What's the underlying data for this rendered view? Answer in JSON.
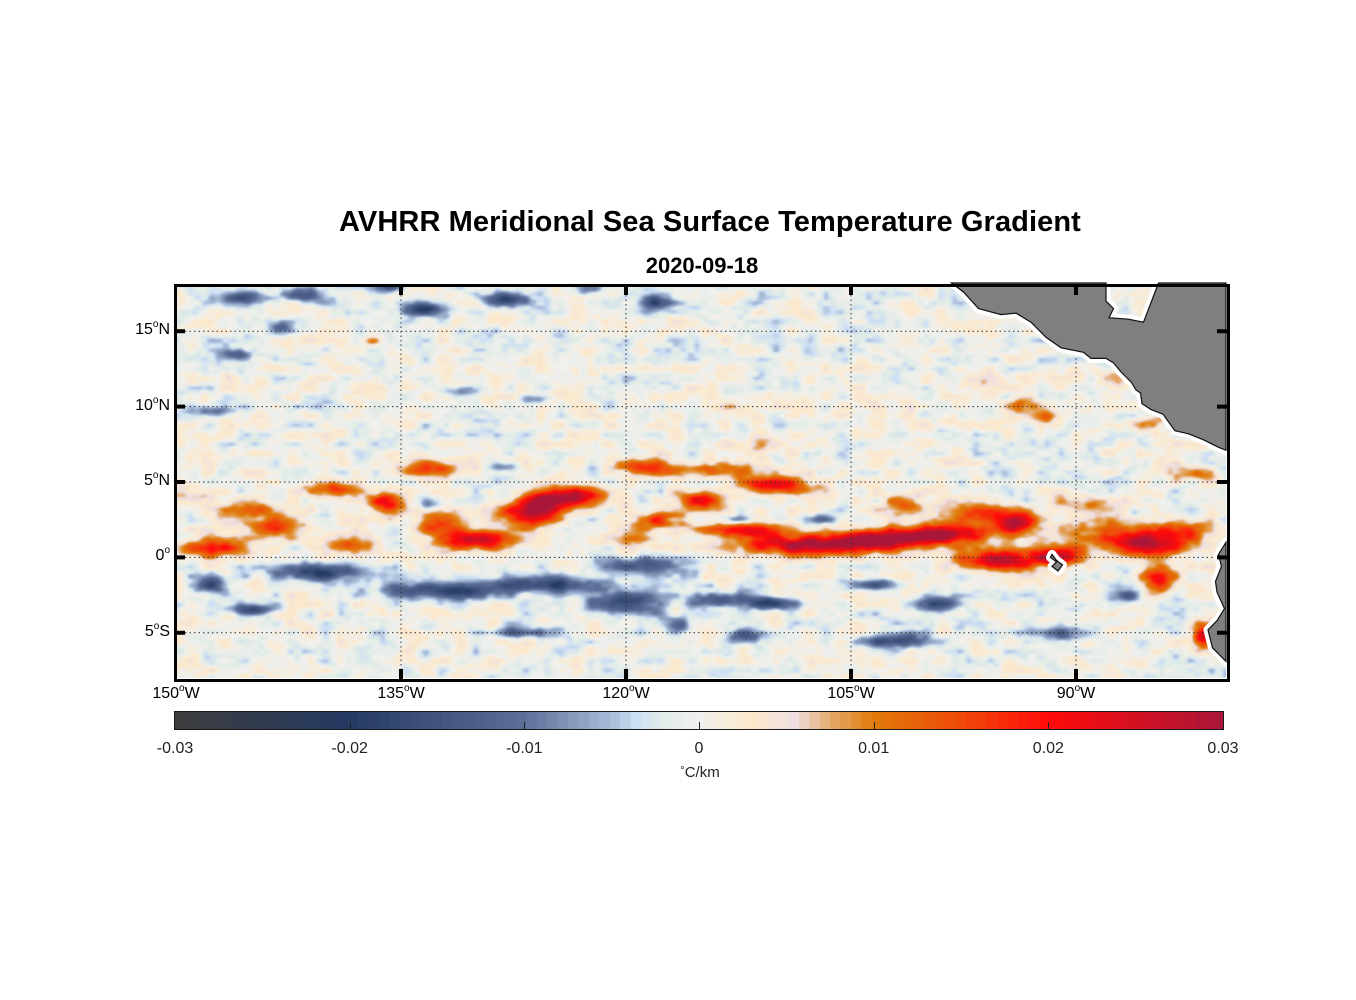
{
  "title": "AVHRR Meridional Sea Surface Temperature Gradient",
  "subtitle": "2020-09-18",
  "chart_data": {
    "type": "heatmap",
    "title": "AVHRR Meridional Sea Surface Temperature Gradient",
    "subtitle": "2020-09-18",
    "projection": "equirectangular",
    "lon_range": [
      -150,
      -80
    ],
    "lat_range": [
      -8,
      18
    ],
    "grid": true,
    "x_ticks": [
      {
        "value": -150,
        "num": "150",
        "hemi": "W"
      },
      {
        "value": -135,
        "num": "135",
        "hemi": "W"
      },
      {
        "value": -120,
        "num": "120",
        "hemi": "W"
      },
      {
        "value": -105,
        "num": "105",
        "hemi": "W"
      },
      {
        "value": -90,
        "num": "90",
        "hemi": "W"
      }
    ],
    "y_ticks": [
      {
        "value": 15,
        "num": "15",
        "hemi": "N"
      },
      {
        "value": 10,
        "num": "10",
        "hemi": "N"
      },
      {
        "value": 5,
        "num": "5",
        "hemi": "N"
      },
      {
        "value": 0,
        "num": "0",
        "hemi": ""
      },
      {
        "value": -5,
        "num": "5",
        "hemi": "S"
      }
    ],
    "colorbar": {
      "orientation": "horizontal",
      "location": "bottom",
      "range": [
        -0.03,
        0.03
      ],
      "ticks": [
        "-0.03",
        "-0.02",
        "-0.01",
        "0",
        "0.01",
        "0.02",
        "0.03"
      ],
      "tick_values": [
        -0.03,
        -0.02,
        -0.01,
        0,
        0.01,
        0.02,
        0.03
      ],
      "unit_symbol": "°",
      "unit_text": "C/km",
      "colormap_stops": [
        {
          "value": -0.03,
          "color": "#3d3d3d"
        },
        {
          "value": -0.02,
          "color": "#253a63"
        },
        {
          "value": -0.01,
          "color": "#5c6f98"
        },
        {
          "value": -0.005,
          "color": "#a9bcd8"
        },
        {
          "value": -0.0035,
          "color": "#cfe0f5"
        },
        {
          "value": -0.002,
          "color": "#e2ece6"
        },
        {
          "value": 0,
          "color": "#f0f0ee"
        },
        {
          "value": 0.003,
          "color": "#fce9cc"
        },
        {
          "value": 0.0055,
          "color": "#eedfe2"
        },
        {
          "value": 0.0075,
          "color": "#e5ab6e"
        },
        {
          "value": 0.01,
          "color": "#e07b0a"
        },
        {
          "value": 0.015,
          "color": "#f04a0a"
        },
        {
          "value": 0.02,
          "color": "#ff0a0a"
        },
        {
          "value": 0.03,
          "color": "#a8173a"
        }
      ]
    },
    "features": [
      {
        "lon": -147.5,
        "lat": 0.6,
        "value": 0.017,
        "rlon": 2.6,
        "rlat": 0.7
      },
      {
        "lon": -143.5,
        "lat": 2.0,
        "value": 0.018,
        "rlon": 2.2,
        "rlat": 0.7
      },
      {
        "lon": -139.5,
        "lat": 4.6,
        "value": 0.017,
        "rlon": 1.8,
        "rlat": 0.6
      },
      {
        "lon": -145.0,
        "lat": 3.2,
        "value": 0.01,
        "rlon": 3.0,
        "rlat": 0.6
      },
      {
        "lon": -148.5,
        "lat": 4.0,
        "value": 0.008,
        "rlon": 1.6,
        "rlat": 0.6
      },
      {
        "lon": -138.5,
        "lat": 1.0,
        "value": 0.014,
        "rlon": 1.6,
        "rlat": 0.7
      },
      {
        "lon": -136.0,
        "lat": 3.6,
        "value": 0.019,
        "rlon": 1.2,
        "rlat": 0.8
      },
      {
        "lon": -133.0,
        "lat": 6.0,
        "value": 0.016,
        "rlon": 2.2,
        "rlat": 0.6
      },
      {
        "lon": -130.0,
        "lat": 1.2,
        "value": 0.026,
        "rlon": 2.6,
        "rlat": 0.7
      },
      {
        "lon": -132.5,
        "lat": 2.3,
        "value": 0.017,
        "rlon": 1.6,
        "rlat": 0.8
      },
      {
        "lon": -126.5,
        "lat": 2.8,
        "value": 0.022,
        "rlon": 2.0,
        "rlat": 0.9
      },
      {
        "lon": -123.5,
        "lat": 4.0,
        "value": 0.028,
        "rlon": 2.3,
        "rlat": 0.7
      },
      {
        "lon": -125.5,
        "lat": 3.5,
        "value": 0.019,
        "rlon": 1.6,
        "rlat": 0.9
      },
      {
        "lon": -119.0,
        "lat": 6.0,
        "value": 0.018,
        "rlon": 1.5,
        "rlat": 0.6
      },
      {
        "lon": -114.5,
        "lat": 5.8,
        "value": 0.013,
        "rlon": 4.0,
        "rlat": 0.6
      },
      {
        "lon": -110.0,
        "lat": 4.8,
        "value": 0.02,
        "rlon": 2.6,
        "rlat": 0.6
      },
      {
        "lon": -115.0,
        "lat": 3.8,
        "value": 0.02,
        "rlon": 1.6,
        "rlat": 0.6
      },
      {
        "lon": -117.5,
        "lat": 2.5,
        "value": 0.019,
        "rlon": 1.6,
        "rlat": 0.5
      },
      {
        "lon": -119.5,
        "lat": 1.0,
        "value": 0.009,
        "rlon": 1.5,
        "rlat": 1.4
      },
      {
        "lon": -112.0,
        "lat": 1.8,
        "value": 0.02,
        "rlon": 2.8,
        "rlat": 0.6
      },
      {
        "lon": -108.0,
        "lat": 0.8,
        "value": 0.027,
        "rlon": 4.5,
        "rlat": 0.7
      },
      {
        "lon": -103.0,
        "lat": 1.2,
        "value": 0.028,
        "rlon": 3.5,
        "rlat": 0.7
      },
      {
        "lon": -98.5,
        "lat": 1.6,
        "value": 0.028,
        "rlon": 3.0,
        "rlat": 0.7
      },
      {
        "lon": -101.5,
        "lat": 3.5,
        "value": 0.014,
        "rlon": 1.5,
        "rlat": 0.8
      },
      {
        "lon": -96.5,
        "lat": 3.0,
        "value": 0.019,
        "rlon": 2.0,
        "rlat": 0.6
      },
      {
        "lon": -94.0,
        "lat": 2.3,
        "value": 0.029,
        "rlon": 1.3,
        "rlat": 0.8
      },
      {
        "lon": -95.5,
        "lat": -0.2,
        "value": 0.027,
        "rlon": 2.5,
        "rlat": 0.7
      },
      {
        "lon": -91.5,
        "lat": 0.0,
        "value": 0.026,
        "rlon": 2.0,
        "rlat": 0.7
      },
      {
        "lon": -88.0,
        "lat": 1.5,
        "value": 0.013,
        "rlon": 3.0,
        "rlat": 1.4
      },
      {
        "lon": -85.0,
        "lat": 0.8,
        "value": 0.026,
        "rlon": 2.4,
        "rlat": 0.8
      },
      {
        "lon": -83.0,
        "lat": 1.8,
        "value": 0.017,
        "rlon": 2.4,
        "rlat": 0.7
      },
      {
        "lon": -84.5,
        "lat": -1.5,
        "value": 0.018,
        "rlon": 1.2,
        "rlat": 1.0
      },
      {
        "lon": -81.5,
        "lat": -5.2,
        "value": 0.025,
        "rlon": 0.7,
        "rlat": 0.8
      },
      {
        "lon": -89.0,
        "lat": 3.6,
        "value": 0.009,
        "rlon": 2.5,
        "rlat": 0.5
      },
      {
        "lon": -82.0,
        "lat": 5.5,
        "value": 0.009,
        "rlon": 1.5,
        "rlat": 0.5
      },
      {
        "lon": -93.5,
        "lat": 10.1,
        "value": 0.012,
        "rlon": 1.2,
        "rlat": 0.6
      },
      {
        "lon": -92.0,
        "lat": 9.3,
        "value": 0.009,
        "rlon": 1.0,
        "rlat": 0.6
      },
      {
        "lon": -87.5,
        "lat": 11.9,
        "value": 0.01,
        "rlon": 1.0,
        "rlat": 0.6
      },
      {
        "lon": -85.0,
        "lat": 8.9,
        "value": 0.01,
        "rlon": 1.2,
        "rlat": 0.5
      },
      {
        "lon": -96.5,
        "lat": 11.8,
        "value": 0.008,
        "rlon": 1.2,
        "rlat": 0.6
      },
      {
        "lon": -98.5,
        "lat": 9.3,
        "value": 0.006,
        "rlon": 1.0,
        "rlat": 0.5
      },
      {
        "lon": -146.5,
        "lat": 12.0,
        "value": 0.008,
        "rlon": 0.6,
        "rlat": 0.4
      },
      {
        "lon": -137.0,
        "lat": 14.3,
        "value": 0.006,
        "rlon": 0.6,
        "rlat": 0.4
      },
      {
        "lon": -113.0,
        "lat": 10.0,
        "value": 0.005,
        "rlon": 1.5,
        "rlat": 0.5
      },
      {
        "lon": -111.0,
        "lat": 7.5,
        "value": 0.005,
        "rlon": 2.0,
        "rlat": 0.5
      },
      {
        "lon": -140.0,
        "lat": -1.0,
        "value": -0.018,
        "rlon": 3.5,
        "rlat": 0.6
      },
      {
        "lon": -132.5,
        "lat": -2.2,
        "value": -0.018,
        "rlon": 4.0,
        "rlat": 0.6
      },
      {
        "lon": -125.0,
        "lat": -1.8,
        "value": -0.017,
        "rlon": 4.0,
        "rlat": 0.6
      },
      {
        "lon": -119.0,
        "lat": -0.5,
        "value": -0.016,
        "rlon": 3.0,
        "rlat": 0.7
      },
      {
        "lon": -120.0,
        "lat": -3.0,
        "value": -0.02,
        "rlon": 2.5,
        "rlat": 0.8
      },
      {
        "lon": -147.5,
        "lat": -1.8,
        "value": -0.015,
        "rlon": 1.2,
        "rlat": 0.6
      },
      {
        "lon": -145.0,
        "lat": -3.5,
        "value": -0.017,
        "rlon": 1.6,
        "rlat": 0.4
      },
      {
        "lon": -127.0,
        "lat": -5.0,
        "value": -0.014,
        "rlon": 2.0,
        "rlat": 0.4
      },
      {
        "lon": -114.0,
        "lat": -2.8,
        "value": -0.015,
        "rlon": 1.8,
        "rlat": 0.5
      },
      {
        "lon": -116.5,
        "lat": -4.5,
        "value": -0.013,
        "rlon": 1.0,
        "rlat": 0.6
      },
      {
        "lon": -110.5,
        "lat": -3.0,
        "value": -0.016,
        "rlon": 2.0,
        "rlat": 0.5
      },
      {
        "lon": -112.0,
        "lat": -5.2,
        "value": -0.014,
        "rlon": 1.5,
        "rlat": 0.5
      },
      {
        "lon": -103.5,
        "lat": -1.8,
        "value": -0.013,
        "rlon": 1.5,
        "rlat": 0.4
      },
      {
        "lon": -99.0,
        "lat": -3.0,
        "value": -0.017,
        "rlon": 1.5,
        "rlat": 0.6
      },
      {
        "lon": -102.0,
        "lat": -5.5,
        "value": -0.018,
        "rlon": 2.0,
        "rlat": 0.5
      },
      {
        "lon": -91.0,
        "lat": -5.0,
        "value": -0.014,
        "rlon": 2.0,
        "rlat": 0.5
      },
      {
        "lon": -86.5,
        "lat": -2.5,
        "value": -0.019,
        "rlon": 0.9,
        "rlat": 0.4
      },
      {
        "lon": -145.5,
        "lat": 17.2,
        "value": -0.016,
        "rlon": 1.8,
        "rlat": 0.5
      },
      {
        "lon": -141.5,
        "lat": 17.4,
        "value": -0.014,
        "rlon": 1.6,
        "rlat": 0.5
      },
      {
        "lon": -136.0,
        "lat": 18.0,
        "value": -0.016,
        "rlon": 1.2,
        "rlat": 0.5
      },
      {
        "lon": -133.5,
        "lat": 16.5,
        "value": -0.017,
        "rlon": 1.5,
        "rlat": 0.5
      },
      {
        "lon": -128.0,
        "lat": 17.2,
        "value": -0.017,
        "rlon": 1.6,
        "rlat": 0.5
      },
      {
        "lon": -118.0,
        "lat": 16.9,
        "value": -0.018,
        "rlon": 1.0,
        "rlat": 0.6
      },
      {
        "lon": -122.5,
        "lat": 17.8,
        "value": -0.012,
        "rlon": 1.0,
        "rlat": 0.4
      },
      {
        "lon": -146.0,
        "lat": 13.5,
        "value": -0.012,
        "rlon": 1.2,
        "rlat": 0.4
      },
      {
        "lon": -147.5,
        "lat": 9.7,
        "value": -0.012,
        "rlon": 1.2,
        "rlat": 0.4
      },
      {
        "lon": -143.0,
        "lat": 15.2,
        "value": -0.011,
        "rlon": 0.8,
        "rlat": 0.4
      },
      {
        "lon": -131.0,
        "lat": 11.0,
        "value": -0.008,
        "rlon": 1.5,
        "rlat": 0.3
      },
      {
        "lon": -126.0,
        "lat": 10.5,
        "value": -0.008,
        "rlon": 1.0,
        "rlat": 0.3
      },
      {
        "lon": -133.0,
        "lat": 3.5,
        "value": -0.008,
        "rlon": 0.8,
        "rlat": 0.4
      },
      {
        "lon": -128.0,
        "lat": 6.0,
        "value": -0.008,
        "rlon": 1.0,
        "rlat": 0.3
      },
      {
        "lon": -117.0,
        "lat": 2.5,
        "value": -0.012,
        "rlon": 0.8,
        "rlat": 0.3
      },
      {
        "lon": -107.0,
        "lat": 2.5,
        "value": -0.01,
        "rlon": 1.0,
        "rlat": 0.3
      },
      {
        "lon": -112.5,
        "lat": 2.5,
        "value": -0.008,
        "rlon": 0.8,
        "rlat": 0.3
      },
      {
        "lon": -93.5,
        "lat": 1.0,
        "value": -0.008,
        "rlon": 0.5,
        "rlat": 0.3
      },
      {
        "lon": -86.0,
        "lat": 3.0,
        "value": -0.006,
        "rlon": 0.6,
        "rlat": 0.3
      }
    ],
    "land": [
      {
        "name": "Central America",
        "polygon": [
          [
            -98.3,
            18.2
          ],
          [
            -97.5,
            17.6
          ],
          [
            -96.5,
            16.5
          ],
          [
            -95.0,
            16.1
          ],
          [
            -94.0,
            16.2
          ],
          [
            -93.0,
            15.6
          ],
          [
            -92.0,
            14.6
          ],
          [
            -91.0,
            13.9
          ],
          [
            -90.0,
            13.7
          ],
          [
            -89.5,
            13.6
          ],
          [
            -89.0,
            13.2
          ],
          [
            -88.0,
            13.2
          ],
          [
            -87.5,
            12.9
          ],
          [
            -87.0,
            12.3
          ],
          [
            -86.3,
            11.6
          ],
          [
            -86.0,
            11.1
          ],
          [
            -85.7,
            10.9
          ],
          [
            -85.6,
            10.2
          ],
          [
            -85.0,
            9.8
          ],
          [
            -84.2,
            9.5
          ],
          [
            -83.7,
            8.8
          ],
          [
            -83.4,
            8.4
          ],
          [
            -82.5,
            8.2
          ],
          [
            -81.5,
            7.8
          ],
          [
            -80.5,
            7.3
          ],
          [
            -80.0,
            7.1
          ],
          [
            -80.0,
            18.2
          ],
          [
            -84.5,
            18.2
          ],
          [
            -85.5,
            15.6
          ],
          [
            -86.5,
            15.8
          ],
          [
            -87.8,
            15.9
          ],
          [
            -87.5,
            16.5
          ],
          [
            -88.0,
            17.0
          ],
          [
            -88.0,
            18.2
          ]
        ]
      },
      {
        "name": "South America",
        "polygon": [
          [
            -80.0,
            1.0
          ],
          [
            -80.5,
            0.2
          ],
          [
            -80.3,
            -0.6
          ],
          [
            -80.7,
            -1.6
          ],
          [
            -80.6,
            -2.3
          ],
          [
            -80.1,
            -3.4
          ],
          [
            -80.6,
            -4.2
          ],
          [
            -81.2,
            -4.8
          ],
          [
            -80.9,
            -6.0
          ],
          [
            -80.0,
            -6.9
          ],
          [
            -80.0,
            1.0
          ]
        ]
      },
      {
        "name": "Galapagos",
        "polygon": [
          [
            -91.6,
            0.2
          ],
          [
            -91.3,
            -0.2
          ],
          [
            -90.9,
            -0.5
          ],
          [
            -91.2,
            -0.9
          ],
          [
            -91.6,
            -0.6
          ],
          [
            -91.3,
            -0.3
          ],
          [
            -91.7,
            0.0
          ]
        ]
      }
    ],
    "land_color": "#7f7f7f"
  }
}
